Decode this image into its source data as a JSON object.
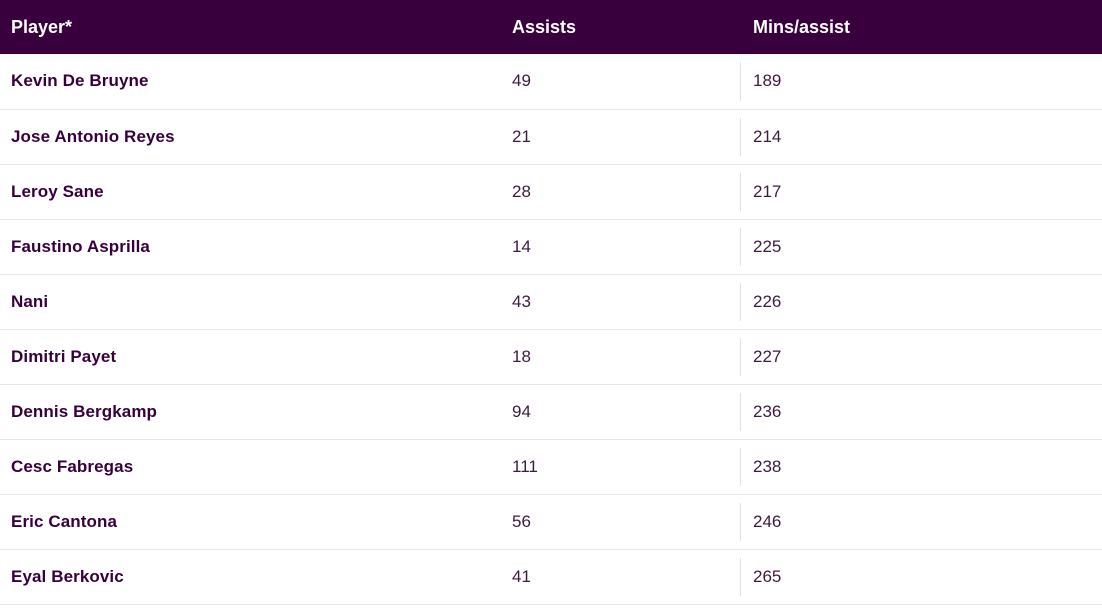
{
  "table": {
    "headers": {
      "player": "Player*",
      "assists": "Assists",
      "mins_per_assist": "Mins/assist"
    },
    "rows": [
      {
        "player": "Kevin De Bruyne",
        "assists": "49",
        "mins_per_assist": "189"
      },
      {
        "player": "Jose Antonio Reyes",
        "assists": "21",
        "mins_per_assist": "214"
      },
      {
        "player": "Leroy Sane",
        "assists": "28",
        "mins_per_assist": "217"
      },
      {
        "player": "Faustino Asprilla",
        "assists": "14",
        "mins_per_assist": "225"
      },
      {
        "player": "Nani",
        "assists": "43",
        "mins_per_assist": "226"
      },
      {
        "player": "Dimitri Payet",
        "assists": "18",
        "mins_per_assist": "227"
      },
      {
        "player": "Dennis Bergkamp",
        "assists": "94",
        "mins_per_assist": "236"
      },
      {
        "player": "Cesc Fabregas",
        "assists": "111",
        "mins_per_assist": "238"
      },
      {
        "player": "Eric Cantona",
        "assists": "56",
        "mins_per_assist": "246"
      },
      {
        "player": "Eyal Berkovic",
        "assists": "41",
        "mins_per_assist": "265"
      }
    ]
  },
  "colors": {
    "header_background": "#38003c",
    "header_text": "#ffffff",
    "body_text": "#37003c",
    "row_divider": "#e8e5ea"
  }
}
